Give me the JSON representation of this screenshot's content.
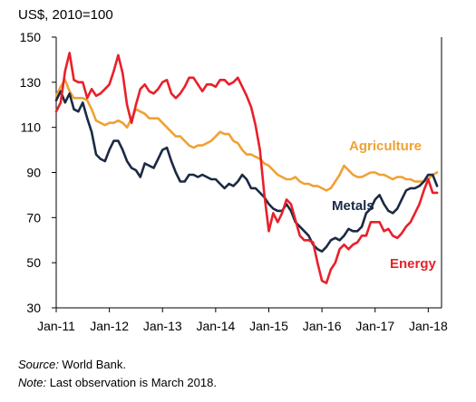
{
  "chart_data": {
    "type": "line",
    "ylabel": "US$, 2010=100",
    "ylim": [
      30,
      150
    ],
    "yticks": [
      30,
      50,
      70,
      90,
      110,
      130,
      150
    ],
    "xlim": [
      2011.0,
      2018.25
    ],
    "xticks": [
      {
        "x": 2011,
        "label": "Jan-11"
      },
      {
        "x": 2012,
        "label": "Jan-12"
      },
      {
        "x": 2013,
        "label": "Jan-13"
      },
      {
        "x": 2014,
        "label": "Jan-14"
      },
      {
        "x": 2015,
        "label": "Jan-15"
      },
      {
        "x": 2016,
        "label": "Jan-16"
      },
      {
        "x": 2017,
        "label": "Jan-17"
      },
      {
        "x": 2018,
        "label": "Jan-18"
      }
    ],
    "grid": false,
    "series": [
      {
        "name": "Agriculture",
        "color": "#F0A133",
        "points": [
          [
            2011.0,
            124
          ],
          [
            2011.083,
            128
          ],
          [
            2011.167,
            131
          ],
          [
            2011.25,
            126
          ],
          [
            2011.333,
            123
          ],
          [
            2011.417,
            123
          ],
          [
            2011.5,
            123
          ],
          [
            2011.583,
            122
          ],
          [
            2011.667,
            118
          ],
          [
            2011.75,
            113
          ],
          [
            2011.833,
            112
          ],
          [
            2011.917,
            111
          ],
          [
            2012.0,
            112
          ],
          [
            2012.083,
            112
          ],
          [
            2012.167,
            113
          ],
          [
            2012.25,
            112
          ],
          [
            2012.333,
            110
          ],
          [
            2012.417,
            114
          ],
          [
            2012.5,
            118
          ],
          [
            2012.583,
            117
          ],
          [
            2012.667,
            116
          ],
          [
            2012.75,
            114
          ],
          [
            2012.833,
            114
          ],
          [
            2012.917,
            114
          ],
          [
            2013.0,
            112
          ],
          [
            2013.083,
            110
          ],
          [
            2013.167,
            108
          ],
          [
            2013.25,
            106
          ],
          [
            2013.333,
            106
          ],
          [
            2013.417,
            104
          ],
          [
            2013.5,
            102
          ],
          [
            2013.583,
            101
          ],
          [
            2013.667,
            102
          ],
          [
            2013.75,
            102
          ],
          [
            2013.833,
            103
          ],
          [
            2013.917,
            104
          ],
          [
            2014.0,
            106
          ],
          [
            2014.083,
            108
          ],
          [
            2014.167,
            107
          ],
          [
            2014.25,
            107
          ],
          [
            2014.333,
            104
          ],
          [
            2014.417,
            103
          ],
          [
            2014.5,
            100
          ],
          [
            2014.583,
            98
          ],
          [
            2014.667,
            98
          ],
          [
            2014.75,
            97
          ],
          [
            2014.833,
            96
          ],
          [
            2014.917,
            94
          ],
          [
            2015.0,
            93
          ],
          [
            2015.083,
            91
          ],
          [
            2015.167,
            89
          ],
          [
            2015.25,
            88
          ],
          [
            2015.333,
            87
          ],
          [
            2015.417,
            87
          ],
          [
            2015.5,
            88
          ],
          [
            2015.583,
            86
          ],
          [
            2015.667,
            85
          ],
          [
            2015.75,
            85
          ],
          [
            2015.833,
            84
          ],
          [
            2015.917,
            84
          ],
          [
            2016.0,
            83
          ],
          [
            2016.083,
            82
          ],
          [
            2016.167,
            83
          ],
          [
            2016.25,
            86
          ],
          [
            2016.333,
            89
          ],
          [
            2016.417,
            93
          ],
          [
            2016.5,
            91
          ],
          [
            2016.583,
            89
          ],
          [
            2016.667,
            88
          ],
          [
            2016.75,
            88
          ],
          [
            2016.833,
            89
          ],
          [
            2016.917,
            90
          ],
          [
            2017.0,
            90
          ],
          [
            2017.083,
            89
          ],
          [
            2017.167,
            89
          ],
          [
            2017.25,
            88
          ],
          [
            2017.333,
            87
          ],
          [
            2017.417,
            88
          ],
          [
            2017.5,
            88
          ],
          [
            2017.583,
            87
          ],
          [
            2017.667,
            87
          ],
          [
            2017.75,
            86
          ],
          [
            2017.833,
            86
          ],
          [
            2017.917,
            86
          ],
          [
            2018.0,
            87
          ],
          [
            2018.083,
            89
          ],
          [
            2018.167,
            90
          ]
        ]
      },
      {
        "name": "Metals",
        "color": "#1B2A44",
        "points": [
          [
            2011.0,
            122
          ],
          [
            2011.083,
            126
          ],
          [
            2011.167,
            121
          ],
          [
            2011.25,
            125
          ],
          [
            2011.333,
            118
          ],
          [
            2011.417,
            117
          ],
          [
            2011.5,
            121
          ],
          [
            2011.583,
            114
          ],
          [
            2011.667,
            108
          ],
          [
            2011.75,
            98
          ],
          [
            2011.833,
            96
          ],
          [
            2011.917,
            95
          ],
          [
            2012.0,
            100
          ],
          [
            2012.083,
            104
          ],
          [
            2012.167,
            104
          ],
          [
            2012.25,
            100
          ],
          [
            2012.333,
            95
          ],
          [
            2012.417,
            92
          ],
          [
            2012.5,
            91
          ],
          [
            2012.583,
            88
          ],
          [
            2012.667,
            94
          ],
          [
            2012.75,
            93
          ],
          [
            2012.833,
            92
          ],
          [
            2012.917,
            96
          ],
          [
            2013.0,
            100
          ],
          [
            2013.083,
            101
          ],
          [
            2013.167,
            95
          ],
          [
            2013.25,
            90
          ],
          [
            2013.333,
            86
          ],
          [
            2013.417,
            86
          ],
          [
            2013.5,
            89
          ],
          [
            2013.583,
            89
          ],
          [
            2013.667,
            88
          ],
          [
            2013.75,
            89
          ],
          [
            2013.833,
            88
          ],
          [
            2013.917,
            87
          ],
          [
            2014.0,
            87
          ],
          [
            2014.083,
            85
          ],
          [
            2014.167,
            83
          ],
          [
            2014.25,
            85
          ],
          [
            2014.333,
            84
          ],
          [
            2014.417,
            86
          ],
          [
            2014.5,
            89
          ],
          [
            2014.583,
            87
          ],
          [
            2014.667,
            83
          ],
          [
            2014.75,
            83
          ],
          [
            2014.833,
            81
          ],
          [
            2014.917,
            79
          ],
          [
            2015.0,
            76
          ],
          [
            2015.083,
            74
          ],
          [
            2015.167,
            73
          ],
          [
            2015.25,
            73
          ],
          [
            2015.333,
            76
          ],
          [
            2015.417,
            73
          ],
          [
            2015.5,
            68
          ],
          [
            2015.583,
            66
          ],
          [
            2015.667,
            64
          ],
          [
            2015.75,
            62
          ],
          [
            2015.833,
            58
          ],
          [
            2015.917,
            56
          ],
          [
            2016.0,
            55
          ],
          [
            2016.083,
            57
          ],
          [
            2016.167,
            60
          ],
          [
            2016.25,
            61
          ],
          [
            2016.333,
            60
          ],
          [
            2016.417,
            62
          ],
          [
            2016.5,
            65
          ],
          [
            2016.583,
            64
          ],
          [
            2016.667,
            64
          ],
          [
            2016.75,
            66
          ],
          [
            2016.833,
            72
          ],
          [
            2016.917,
            74
          ],
          [
            2017.0,
            78
          ],
          [
            2017.083,
            80
          ],
          [
            2017.167,
            76
          ],
          [
            2017.25,
            73
          ],
          [
            2017.333,
            72
          ],
          [
            2017.417,
            74
          ],
          [
            2017.5,
            78
          ],
          [
            2017.583,
            82
          ],
          [
            2017.667,
            83
          ],
          [
            2017.75,
            83
          ],
          [
            2017.833,
            84
          ],
          [
            2017.917,
            86
          ],
          [
            2018.0,
            89
          ],
          [
            2018.083,
            89
          ],
          [
            2018.167,
            84
          ]
        ]
      },
      {
        "name": "Energy",
        "color": "#E8202A",
        "points": [
          [
            2011.0,
            117
          ],
          [
            2011.083,
            121
          ],
          [
            2011.167,
            135
          ],
          [
            2011.25,
            143
          ],
          [
            2011.333,
            131
          ],
          [
            2011.417,
            130
          ],
          [
            2011.5,
            130
          ],
          [
            2011.583,
            123
          ],
          [
            2011.667,
            127
          ],
          [
            2011.75,
            124
          ],
          [
            2011.833,
            125
          ],
          [
            2011.917,
            127
          ],
          [
            2012.0,
            129
          ],
          [
            2012.083,
            135
          ],
          [
            2012.167,
            142
          ],
          [
            2012.25,
            134
          ],
          [
            2012.333,
            120
          ],
          [
            2012.417,
            112
          ],
          [
            2012.5,
            120
          ],
          [
            2012.583,
            127
          ],
          [
            2012.667,
            129
          ],
          [
            2012.75,
            126
          ],
          [
            2012.833,
            125
          ],
          [
            2012.917,
            127
          ],
          [
            2013.0,
            130
          ],
          [
            2013.083,
            131
          ],
          [
            2013.167,
            125
          ],
          [
            2013.25,
            123
          ],
          [
            2013.333,
            125
          ],
          [
            2013.417,
            128
          ],
          [
            2013.5,
            132
          ],
          [
            2013.583,
            132
          ],
          [
            2013.667,
            129
          ],
          [
            2013.75,
            126
          ],
          [
            2013.833,
            129
          ],
          [
            2013.917,
            129
          ],
          [
            2014.0,
            128
          ],
          [
            2014.083,
            131
          ],
          [
            2014.167,
            131
          ],
          [
            2014.25,
            129
          ],
          [
            2014.333,
            130
          ],
          [
            2014.417,
            132
          ],
          [
            2014.5,
            128
          ],
          [
            2014.583,
            124
          ],
          [
            2014.667,
            119
          ],
          [
            2014.75,
            111
          ],
          [
            2014.833,
            100
          ],
          [
            2014.917,
            80
          ],
          [
            2015.0,
            64
          ],
          [
            2015.083,
            72
          ],
          [
            2015.167,
            68
          ],
          [
            2015.25,
            72
          ],
          [
            2015.333,
            78
          ],
          [
            2015.417,
            76
          ],
          [
            2015.5,
            69
          ],
          [
            2015.583,
            62
          ],
          [
            2015.667,
            60
          ],
          [
            2015.75,
            60
          ],
          [
            2015.833,
            59
          ],
          [
            2015.917,
            50
          ],
          [
            2016.0,
            42
          ],
          [
            2016.083,
            41
          ],
          [
            2016.167,
            47
          ],
          [
            2016.25,
            50
          ],
          [
            2016.333,
            56
          ],
          [
            2016.417,
            58
          ],
          [
            2016.5,
            56
          ],
          [
            2016.583,
            58
          ],
          [
            2016.667,
            59
          ],
          [
            2016.75,
            62
          ],
          [
            2016.833,
            62
          ],
          [
            2016.917,
            68
          ],
          [
            2017.0,
            68
          ],
          [
            2017.083,
            68
          ],
          [
            2017.167,
            64
          ],
          [
            2017.25,
            65
          ],
          [
            2017.333,
            62
          ],
          [
            2017.417,
            61
          ],
          [
            2017.5,
            63
          ],
          [
            2017.583,
            66
          ],
          [
            2017.667,
            68
          ],
          [
            2017.75,
            72
          ],
          [
            2017.833,
            76
          ],
          [
            2017.917,
            82
          ],
          [
            2018.0,
            87
          ],
          [
            2018.083,
            81
          ],
          [
            2018.167,
            81
          ]
        ]
      }
    ]
  },
  "notes": {
    "source_label": "Source:",
    "source_text": " World Bank.",
    "note_label": "Note:",
    "note_text": " Last observation is March 2018."
  }
}
